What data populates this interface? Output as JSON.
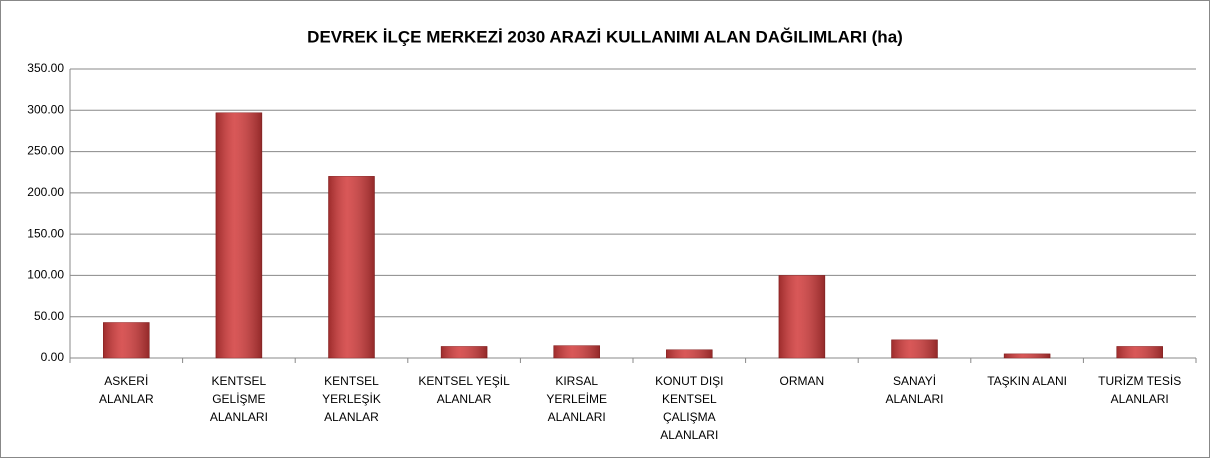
{
  "chart_data": {
    "type": "bar",
    "title": "DEVREK İLÇE MERKEZİ 2030 ARAZİ KULLANIMI ALAN DAĞILIMLARI (ha)",
    "categories": [
      "ASKERİ\nALANLAR",
      "KENTSEL\nGELİŞME\nALANLARI",
      "KENTSEL\nYERLEŞİK\nALANLAR",
      "KENTSEL YEŞİL\nALANLAR",
      "KIRSAL\nYERLEİME\nALANLARI",
      "KONUT DIŞI\nKENTSEL\nÇALIŞMA\nALANLARI",
      "ORMAN",
      "SANAYİ\nALANLARI",
      "TAŞKIN ALANI",
      "TURİZM TESİS\nALANLARI"
    ],
    "values": [
      43,
      297,
      220,
      14,
      15,
      10,
      100,
      22,
      5,
      14
    ],
    "color": "#d23a3a",
    "ylim": [
      0,
      350
    ],
    "yticks": [
      {
        "value": 0,
        "label": "0.00"
      },
      {
        "value": 50,
        "label": "50.00"
      },
      {
        "value": 100,
        "label": "100.00"
      },
      {
        "value": 150,
        "label": "150.00"
      },
      {
        "value": 200,
        "label": "200.00"
      },
      {
        "value": 250,
        "label": "250.00"
      },
      {
        "value": 300,
        "label": "300.00"
      },
      {
        "value": 350,
        "label": "350.00"
      }
    ],
    "grid": true
  }
}
